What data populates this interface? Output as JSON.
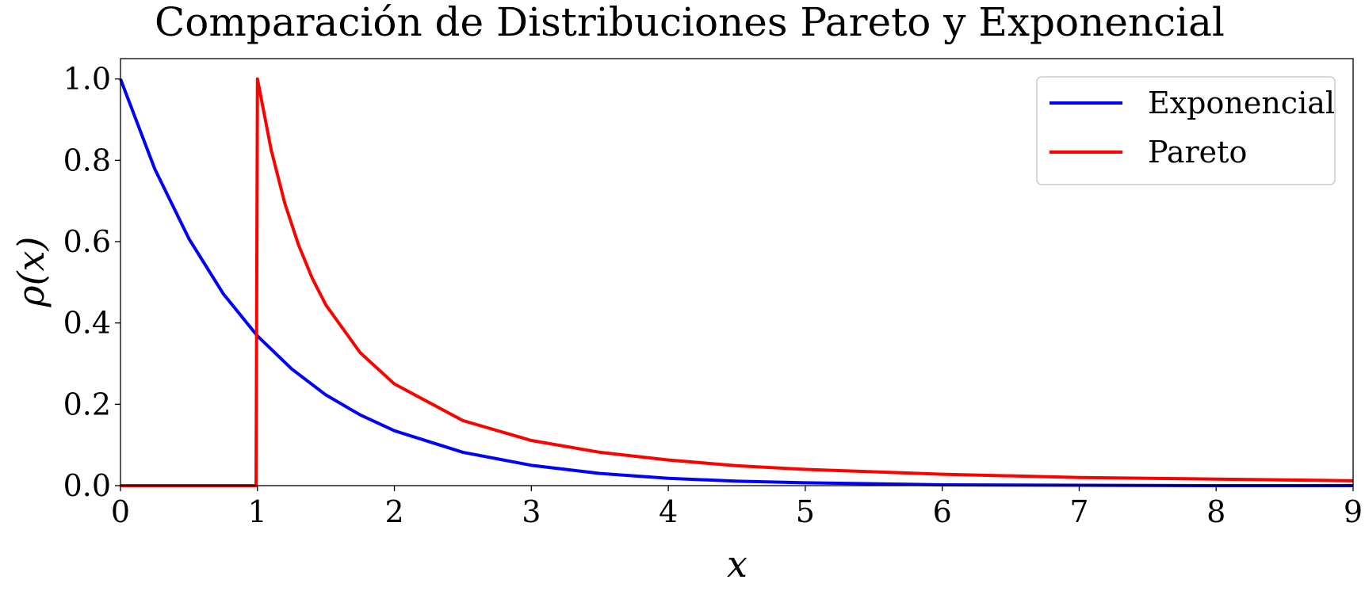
{
  "chart_data": {
    "type": "line",
    "title": "Comparación de Distribuciones Pareto y Exponencial",
    "xlabel": "x",
    "ylabel": "ρ(x)",
    "xlim": [
      0,
      9
    ],
    "ylim": [
      0,
      1.05
    ],
    "grid": false,
    "legend_position": "top-right",
    "xticks": [
      0,
      1,
      2,
      3,
      4,
      5,
      6,
      7,
      8,
      9
    ],
    "xtick_labels": [
      "0",
      "1",
      "2",
      "3",
      "4",
      "5",
      "6",
      "7",
      "8",
      "9"
    ],
    "yticks": [
      0.0,
      0.2,
      0.4,
      0.6,
      0.8,
      1.0
    ],
    "ytick_labels": [
      "0.0",
      "0.2",
      "0.4",
      "0.6",
      "0.8",
      "1.0"
    ],
    "series": [
      {
        "name": "Exponencial",
        "color": "#0000ff",
        "x": [
          0,
          0.25,
          0.5,
          0.75,
          1,
          1.25,
          1.5,
          1.75,
          2,
          2.5,
          3,
          3.5,
          4,
          4.5,
          5,
          6,
          7,
          8,
          9
        ],
        "y": [
          1.0,
          0.779,
          0.607,
          0.472,
          0.368,
          0.287,
          0.223,
          0.174,
          0.135,
          0.082,
          0.05,
          0.03,
          0.018,
          0.011,
          0.007,
          0.002,
          0.001,
          0.0,
          0.0
        ]
      },
      {
        "name": "Pareto",
        "color": "#ff0000",
        "x": [
          0,
          0.99,
          1.0,
          1.1,
          1.2,
          1.3,
          1.4,
          1.5,
          1.75,
          2,
          2.5,
          3,
          3.5,
          4,
          4.5,
          5,
          6,
          7,
          8,
          9
        ],
        "y": [
          0.0,
          0.0,
          1.0,
          0.826,
          0.694,
          0.592,
          0.51,
          0.444,
          0.327,
          0.25,
          0.16,
          0.111,
          0.082,
          0.063,
          0.049,
          0.04,
          0.028,
          0.02,
          0.016,
          0.012
        ]
      }
    ]
  }
}
